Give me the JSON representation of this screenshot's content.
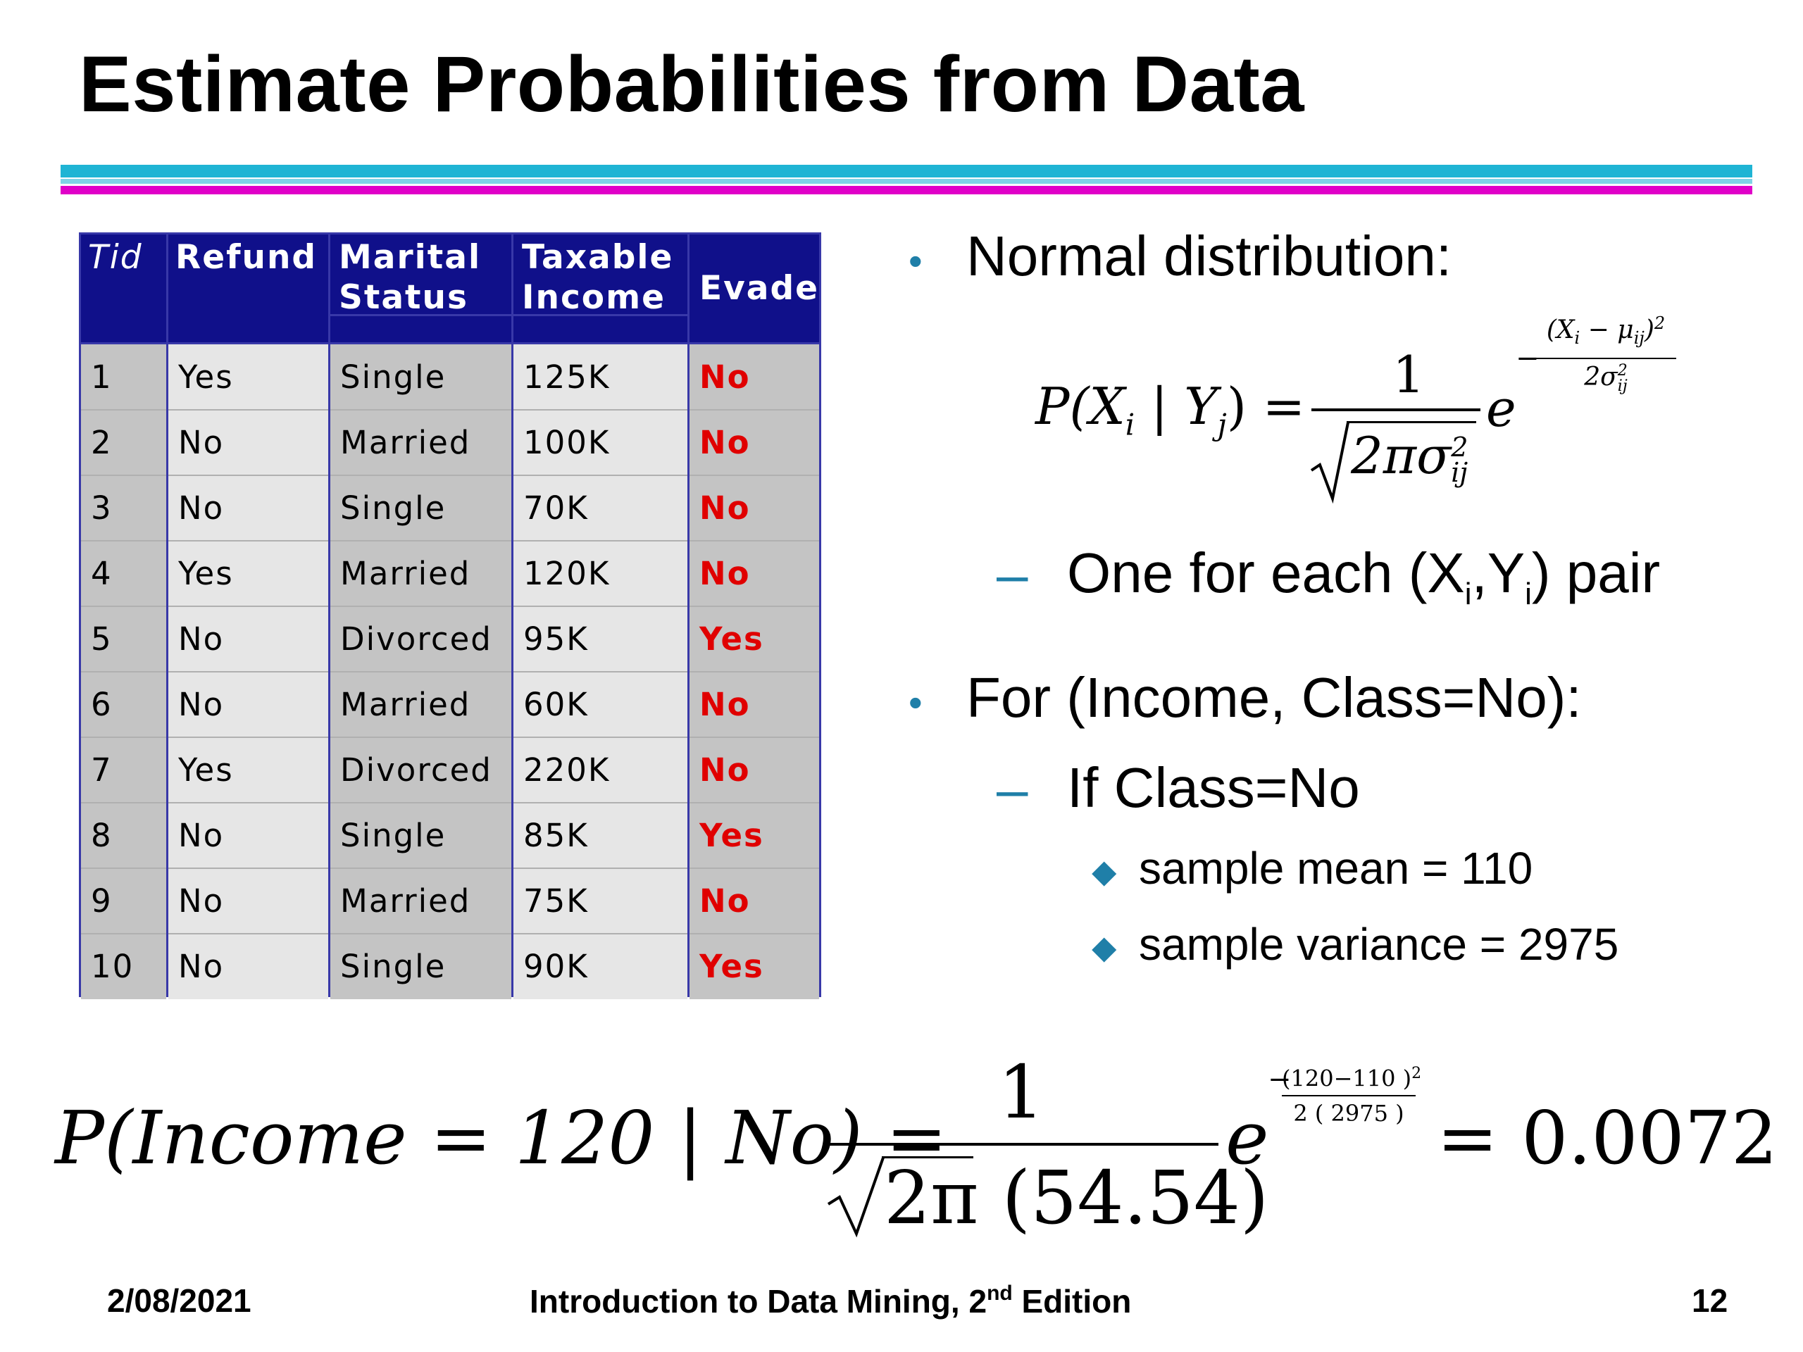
{
  "title": "Estimate Probabilities from Data",
  "table": {
    "headers": {
      "tid": "Tid",
      "refund": "Refund",
      "marital_1": "Marital",
      "marital_2": "Status",
      "income_1": "Taxable",
      "income_2": "Income",
      "evade": "Evade"
    },
    "rows": [
      {
        "tid": "1",
        "refund": "Yes",
        "marital": "Single",
        "income": "125K",
        "evade": "No"
      },
      {
        "tid": "2",
        "refund": "No",
        "marital": "Married",
        "income": "100K",
        "evade": "No"
      },
      {
        "tid": "3",
        "refund": "No",
        "marital": "Single",
        "income": "70K",
        "evade": "No"
      },
      {
        "tid": "4",
        "refund": "Yes",
        "marital": "Married",
        "income": "120K",
        "evade": "No"
      },
      {
        "tid": "5",
        "refund": "No",
        "marital": "Divorced",
        "income": "95K",
        "evade": "Yes"
      },
      {
        "tid": "6",
        "refund": "No",
        "marital": "Married",
        "income": "60K",
        "evade": "No"
      },
      {
        "tid": "7",
        "refund": "Yes",
        "marital": "Divorced",
        "income": "220K",
        "evade": "No"
      },
      {
        "tid": "8",
        "refund": "No",
        "marital": "Single",
        "income": "85K",
        "evade": "Yes"
      },
      {
        "tid": "9",
        "refund": "No",
        "marital": "Married",
        "income": "75K",
        "evade": "No"
      },
      {
        "tid": "10",
        "refund": "No",
        "marital": "Single",
        "income": "90K",
        "evade": "Yes"
      }
    ]
  },
  "bullets": {
    "b1": "Normal distribution:",
    "b1_sub_pre": "One for each (X",
    "b1_sub_i": "i",
    "b1_sub_mid": ",Y",
    "b1_sub_j": "i",
    "b1_sub_post": ") pair",
    "b2": "For (Income, Class=No):",
    "b2_sub": "If Class=No",
    "b2_item1": "sample mean = 110",
    "b2_item2": "sample variance = 2975"
  },
  "formula1": {
    "lhs": "P(X",
    "lhs_i": "i",
    "lhs_mid": " | Y",
    "lhs_j": "j",
    "lhs_end": ") =",
    "numerator": "1",
    "denominator": "2πσ",
    "den_sup": "2",
    "den_sub": "ij",
    "e": "e",
    "exp_num": "(X",
    "exp_num_i": "i",
    "exp_num_mid": " − μ",
    "exp_num_ij": "ij",
    "exp_num_end": ")",
    "exp_num_sup": "2",
    "exp_den": "2σ",
    "exp_den_sup": "2",
    "exp_den_sub": "ij",
    "minus": "−"
  },
  "formula2": {
    "lhs": "P(Income = 120 | No) =",
    "numerator": "1",
    "denominator": "2π (54.54)",
    "e": "e",
    "exp_num": "(120−110 )",
    "exp_num_sup": "2",
    "exp_den": "2 ( 2975 )",
    "minus": "−",
    "result": "= 0.0072"
  },
  "footer": {
    "date": "2/08/2021",
    "book_pre": "Introduction to Data Mining, 2",
    "book_sup": "nd",
    "book_post": " Edition",
    "page": "12"
  },
  "colors": {
    "header_bg": "#10108a",
    "evade_text": "#e00000",
    "accent_cyan": "#1fb4d4",
    "accent_magenta": "#e000c8",
    "bullet": "#1f7fa8"
  }
}
